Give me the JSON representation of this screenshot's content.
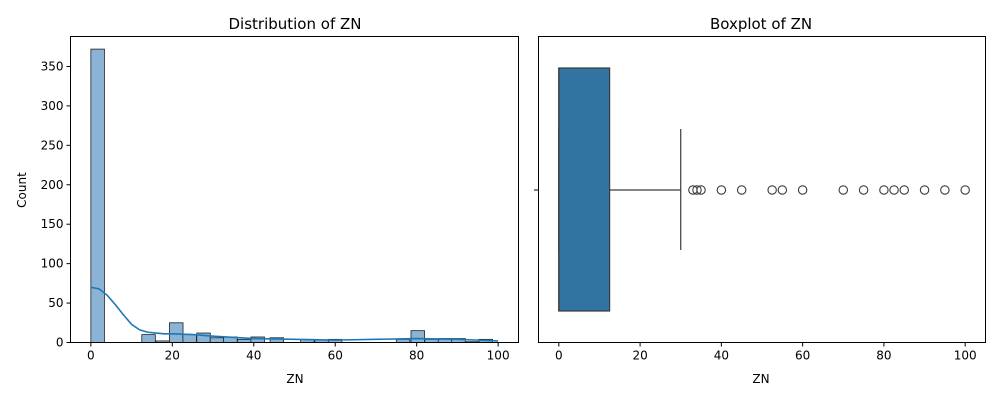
{
  "chart_data": [
    {
      "type": "bar",
      "title": "Distribution of ZN",
      "xlabel": "ZN",
      "ylabel": "Count",
      "xlim": [
        -5,
        105
      ],
      "ylim": [
        0,
        388
      ],
      "xticks": [
        0,
        20,
        40,
        60,
        80,
        100
      ],
      "yticks": [
        0,
        50,
        100,
        150,
        200,
        250,
        300,
        350
      ],
      "bin_width": 3.33,
      "bins": [
        {
          "x0": 0.0,
          "count": 372
        },
        {
          "x0": 12.5,
          "count": 10
        },
        {
          "x0": 16.0,
          "count": 2
        },
        {
          "x0": 19.3,
          "count": 25
        },
        {
          "x0": 22.6,
          "count": 10
        },
        {
          "x0": 26.0,
          "count": 12
        },
        {
          "x0": 29.3,
          "count": 6
        },
        {
          "x0": 32.6,
          "count": 7
        },
        {
          "x0": 36.0,
          "count": 4
        },
        {
          "x0": 39.3,
          "count": 7
        },
        {
          "x0": 44.0,
          "count": 6
        },
        {
          "x0": 51.5,
          "count": 4
        },
        {
          "x0": 55.0,
          "count": 3
        },
        {
          "x0": 58.3,
          "count": 4
        },
        {
          "x0": 75.0,
          "count": 4
        },
        {
          "x0": 78.6,
          "count": 15
        },
        {
          "x0": 82.0,
          "count": 4
        },
        {
          "x0": 85.3,
          "count": 5
        },
        {
          "x0": 88.6,
          "count": 5
        },
        {
          "x0": 92.0,
          "count": 1
        },
        {
          "x0": 95.3,
          "count": 4
        }
      ],
      "kde": {
        "x": [
          0,
          2,
          4,
          6,
          8,
          10,
          12,
          14,
          16,
          18,
          20,
          25,
          30,
          40,
          50,
          60,
          70,
          80,
          90,
          95,
          100
        ],
        "y": [
          70,
          68,
          60,
          48,
          35,
          23,
          16,
          13,
          12,
          11,
          11,
          10,
          8,
          5,
          4,
          3,
          4,
          5,
          4,
          3,
          2
        ]
      },
      "colors": {
        "bar": "#8bb3d5",
        "bar_edge": "#1f1f1f",
        "kde": "#1f77b4"
      }
    },
    {
      "type": "boxplot",
      "title": "Boxplot of ZN",
      "xlabel": "ZN",
      "xlim": [
        -5,
        105
      ],
      "xticks": [
        0,
        20,
        40,
        60,
        80,
        100
      ],
      "box": {
        "min": 0,
        "q1": 0,
        "median": 0,
        "q3": 12.5,
        "whisker_high": 30
      },
      "outliers": [
        33,
        34,
        35,
        40,
        45,
        52.5,
        55,
        60,
        70,
        75,
        80,
        82.5,
        85,
        90,
        95,
        100
      ],
      "colors": {
        "box": "#3274a1",
        "box_edge": "#3b3b3b",
        "whisker": "#3b3b3b"
      }
    }
  ]
}
